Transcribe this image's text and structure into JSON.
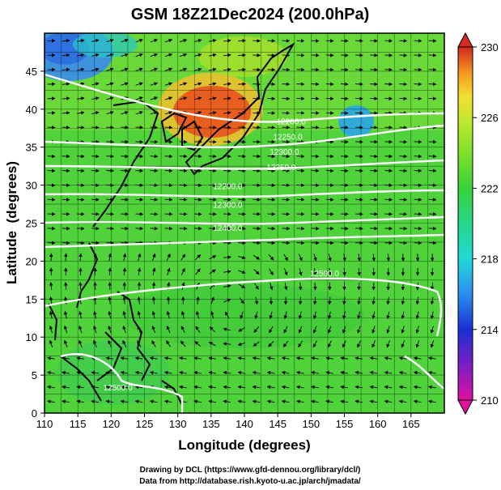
{
  "title": "GSM 18Z21Dec2024 (200.0hPa)",
  "axes": {
    "xlabel": "Longitude (degrees)",
    "ylabel": "Latitude  (degrees)",
    "x_ticks": [
      110,
      115,
      120,
      125,
      130,
      135,
      140,
      145,
      150,
      155,
      160,
      165
    ],
    "y_ticks": [
      0,
      5,
      10,
      15,
      20,
      25,
      30,
      35,
      40,
      45
    ],
    "xlim": [
      110,
      170
    ],
    "ylim": [
      0,
      50
    ]
  },
  "colorbar": {
    "ticks": [
      210,
      214,
      218,
      222,
      226,
      230
    ],
    "range": [
      210,
      230
    ],
    "colors": [
      "#e0109e",
      "#7a1fc4",
      "#1a2fd4",
      "#2a8ef0",
      "#22d8d8",
      "#24d88a",
      "#3ad23a",
      "#7ee02a",
      "#b8e82e",
      "#f3e030",
      "#f5a020",
      "#e85a20",
      "#d42a20"
    ]
  },
  "contour_labels": [
    {
      "text": "12200.0",
      "lon": 147,
      "lat": 38
    },
    {
      "text": "12250.0",
      "lon": 146.5,
      "lat": 36
    },
    {
      "text": "12300.0",
      "lon": 146,
      "lat": 34
    },
    {
      "text": "12350.0",
      "lon": 145.5,
      "lat": 32
    },
    {
      "text": "12200.0",
      "lon": 137.5,
      "lat": 29.5
    },
    {
      "text": "12300.0",
      "lon": 137.5,
      "lat": 27
    },
    {
      "text": "12400.0",
      "lon": 137.5,
      "lat": 24
    },
    {
      "text": "12500.0",
      "lon": 152,
      "lat": 18
    },
    {
      "text": "12500.0",
      "lon": 121,
      "lat": 3
    }
  ],
  "footer": {
    "line1": "Drawing by DCL (https://www.gfd-dennou.org/library/dcl/)",
    "line2": "Data from http://database.rish.kyoto-u.ac.jp/arch/jmadata/"
  }
}
